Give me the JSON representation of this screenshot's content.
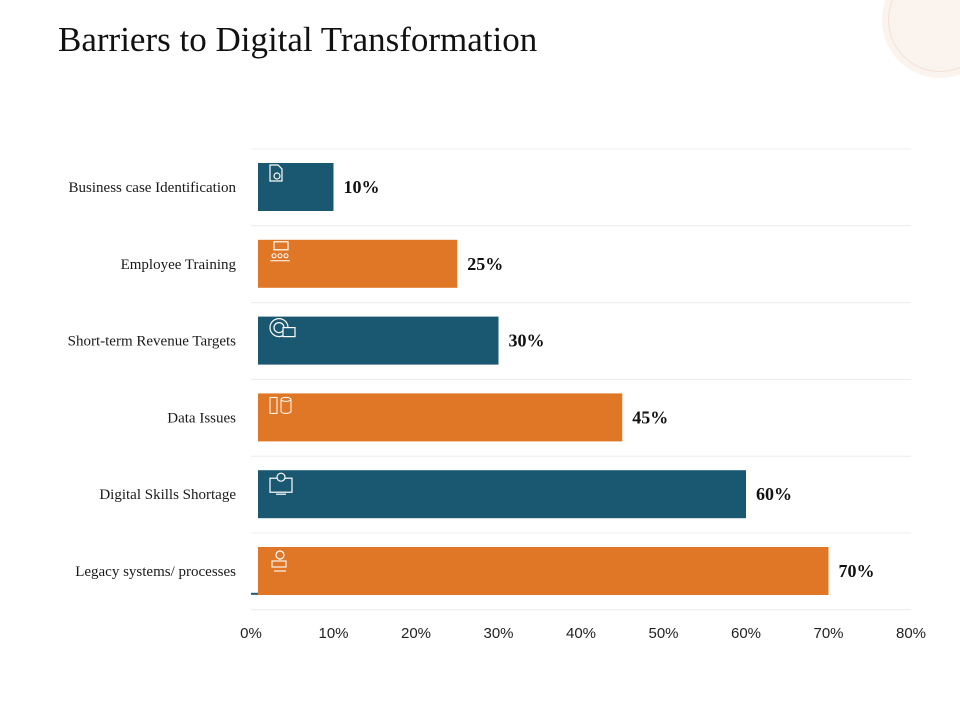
{
  "colors": {
    "teal": "#1a5872",
    "orange": "#e07727"
  },
  "chart_data": {
    "type": "bar",
    "orientation": "horizontal",
    "title": "Barriers to Digital Transformation",
    "categories": [
      "Business case Identification",
      "Employee Training",
      "Short-term Revenue Targets",
      "Data Issues",
      "Digital Skills Shortage",
      "Legacy systems/ processes"
    ],
    "values": [
      10,
      25,
      30,
      45,
      60,
      70
    ],
    "value_labels": [
      "10%",
      "25%",
      "30%",
      "45%",
      "60%",
      "70%"
    ],
    "bar_colors": [
      "#1a5872",
      "#e07727",
      "#1a5872",
      "#e07727",
      "#1a5872",
      "#e07727"
    ],
    "icons": [
      "document-search-icon",
      "team-board-icon",
      "target-briefcase-icon",
      "database-icon",
      "computer-gear-icon",
      "settings-network-icon"
    ],
    "xlim": [
      0,
      80
    ],
    "xticks": [
      "0%",
      "10%",
      "20%",
      "30%",
      "40%",
      "50%",
      "60%",
      "70%",
      "80%"
    ],
    "xlabel": "",
    "ylabel": "",
    "grid": "horizontal"
  }
}
